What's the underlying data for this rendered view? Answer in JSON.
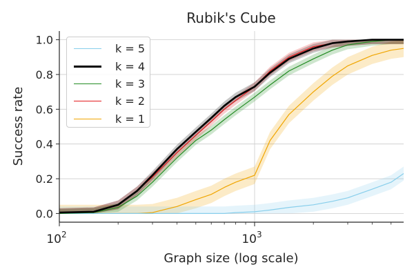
{
  "chart_data": {
    "type": "line",
    "title": "Rubik's Cube",
    "xlabel": "Graph size (log scale)",
    "ylabel": "Success rate",
    "xscale": "log",
    "xlim": [
      100,
      5800
    ],
    "ylim": [
      -0.05,
      1.05
    ],
    "x_ticks": [
      {
        "value": 100,
        "base": "10",
        "exp": "2"
      },
      {
        "value": 1000,
        "base": "10",
        "exp": "3"
      }
    ],
    "y_ticks": [
      "0.0",
      "0.2",
      "0.4",
      "0.6",
      "0.8",
      "1.0"
    ],
    "y_tick_values": [
      0.0,
      0.2,
      0.4,
      0.6,
      0.8,
      1.0
    ],
    "grid": true,
    "legend_position": "top-left",
    "x": [
      100,
      150,
      200,
      250,
      300,
      400,
      500,
      600,
      700,
      800,
      1000,
      1200,
      1500,
      2000,
      2500,
      3000,
      4000,
      5000,
      5800
    ],
    "series": [
      {
        "name": "k = 5",
        "color": "#87ceeb",
        "line_width": 1.2,
        "values": [
          0.0,
          0.0,
          0.0,
          0.0,
          0.0,
          0.0,
          0.0,
          0.0,
          0.0,
          0.005,
          0.01,
          0.02,
          0.035,
          0.05,
          0.07,
          0.09,
          0.14,
          0.18,
          0.23
        ],
        "band": 0.04
      },
      {
        "name": "k = 4",
        "color": "#000000",
        "line_width": 2.6,
        "values": [
          0.005,
          0.01,
          0.05,
          0.13,
          0.22,
          0.37,
          0.47,
          0.55,
          0.62,
          0.67,
          0.73,
          0.81,
          0.89,
          0.95,
          0.98,
          0.99,
          1.0,
          1.0,
          1.0
        ],
        "band": 0.025
      },
      {
        "name": "k = 3",
        "color": "#228b22",
        "line_width": 1.2,
        "values": [
          0.0,
          0.005,
          0.035,
          0.1,
          0.18,
          0.32,
          0.42,
          0.48,
          0.54,
          0.59,
          0.67,
          0.74,
          0.82,
          0.89,
          0.94,
          0.97,
          0.99,
          1.0,
          1.0
        ],
        "band": 0.025
      },
      {
        "name": "k = 2",
        "color": "#e31a1c",
        "line_width": 1.2,
        "values": [
          0.005,
          0.01,
          0.05,
          0.13,
          0.21,
          0.35,
          0.45,
          0.53,
          0.6,
          0.65,
          0.73,
          0.82,
          0.9,
          0.96,
          0.98,
          0.99,
          1.0,
          1.0,
          1.0
        ],
        "band": 0.025
      },
      {
        "name": "k = 1",
        "color": "#f0a500",
        "line_width": 1.2,
        "values": [
          0.0,
          0.0,
          0.0,
          0.0,
          0.005,
          0.04,
          0.08,
          0.11,
          0.15,
          0.18,
          0.22,
          0.42,
          0.57,
          0.7,
          0.79,
          0.85,
          0.91,
          0.94,
          0.95
        ],
        "band": 0.05
      }
    ]
  }
}
